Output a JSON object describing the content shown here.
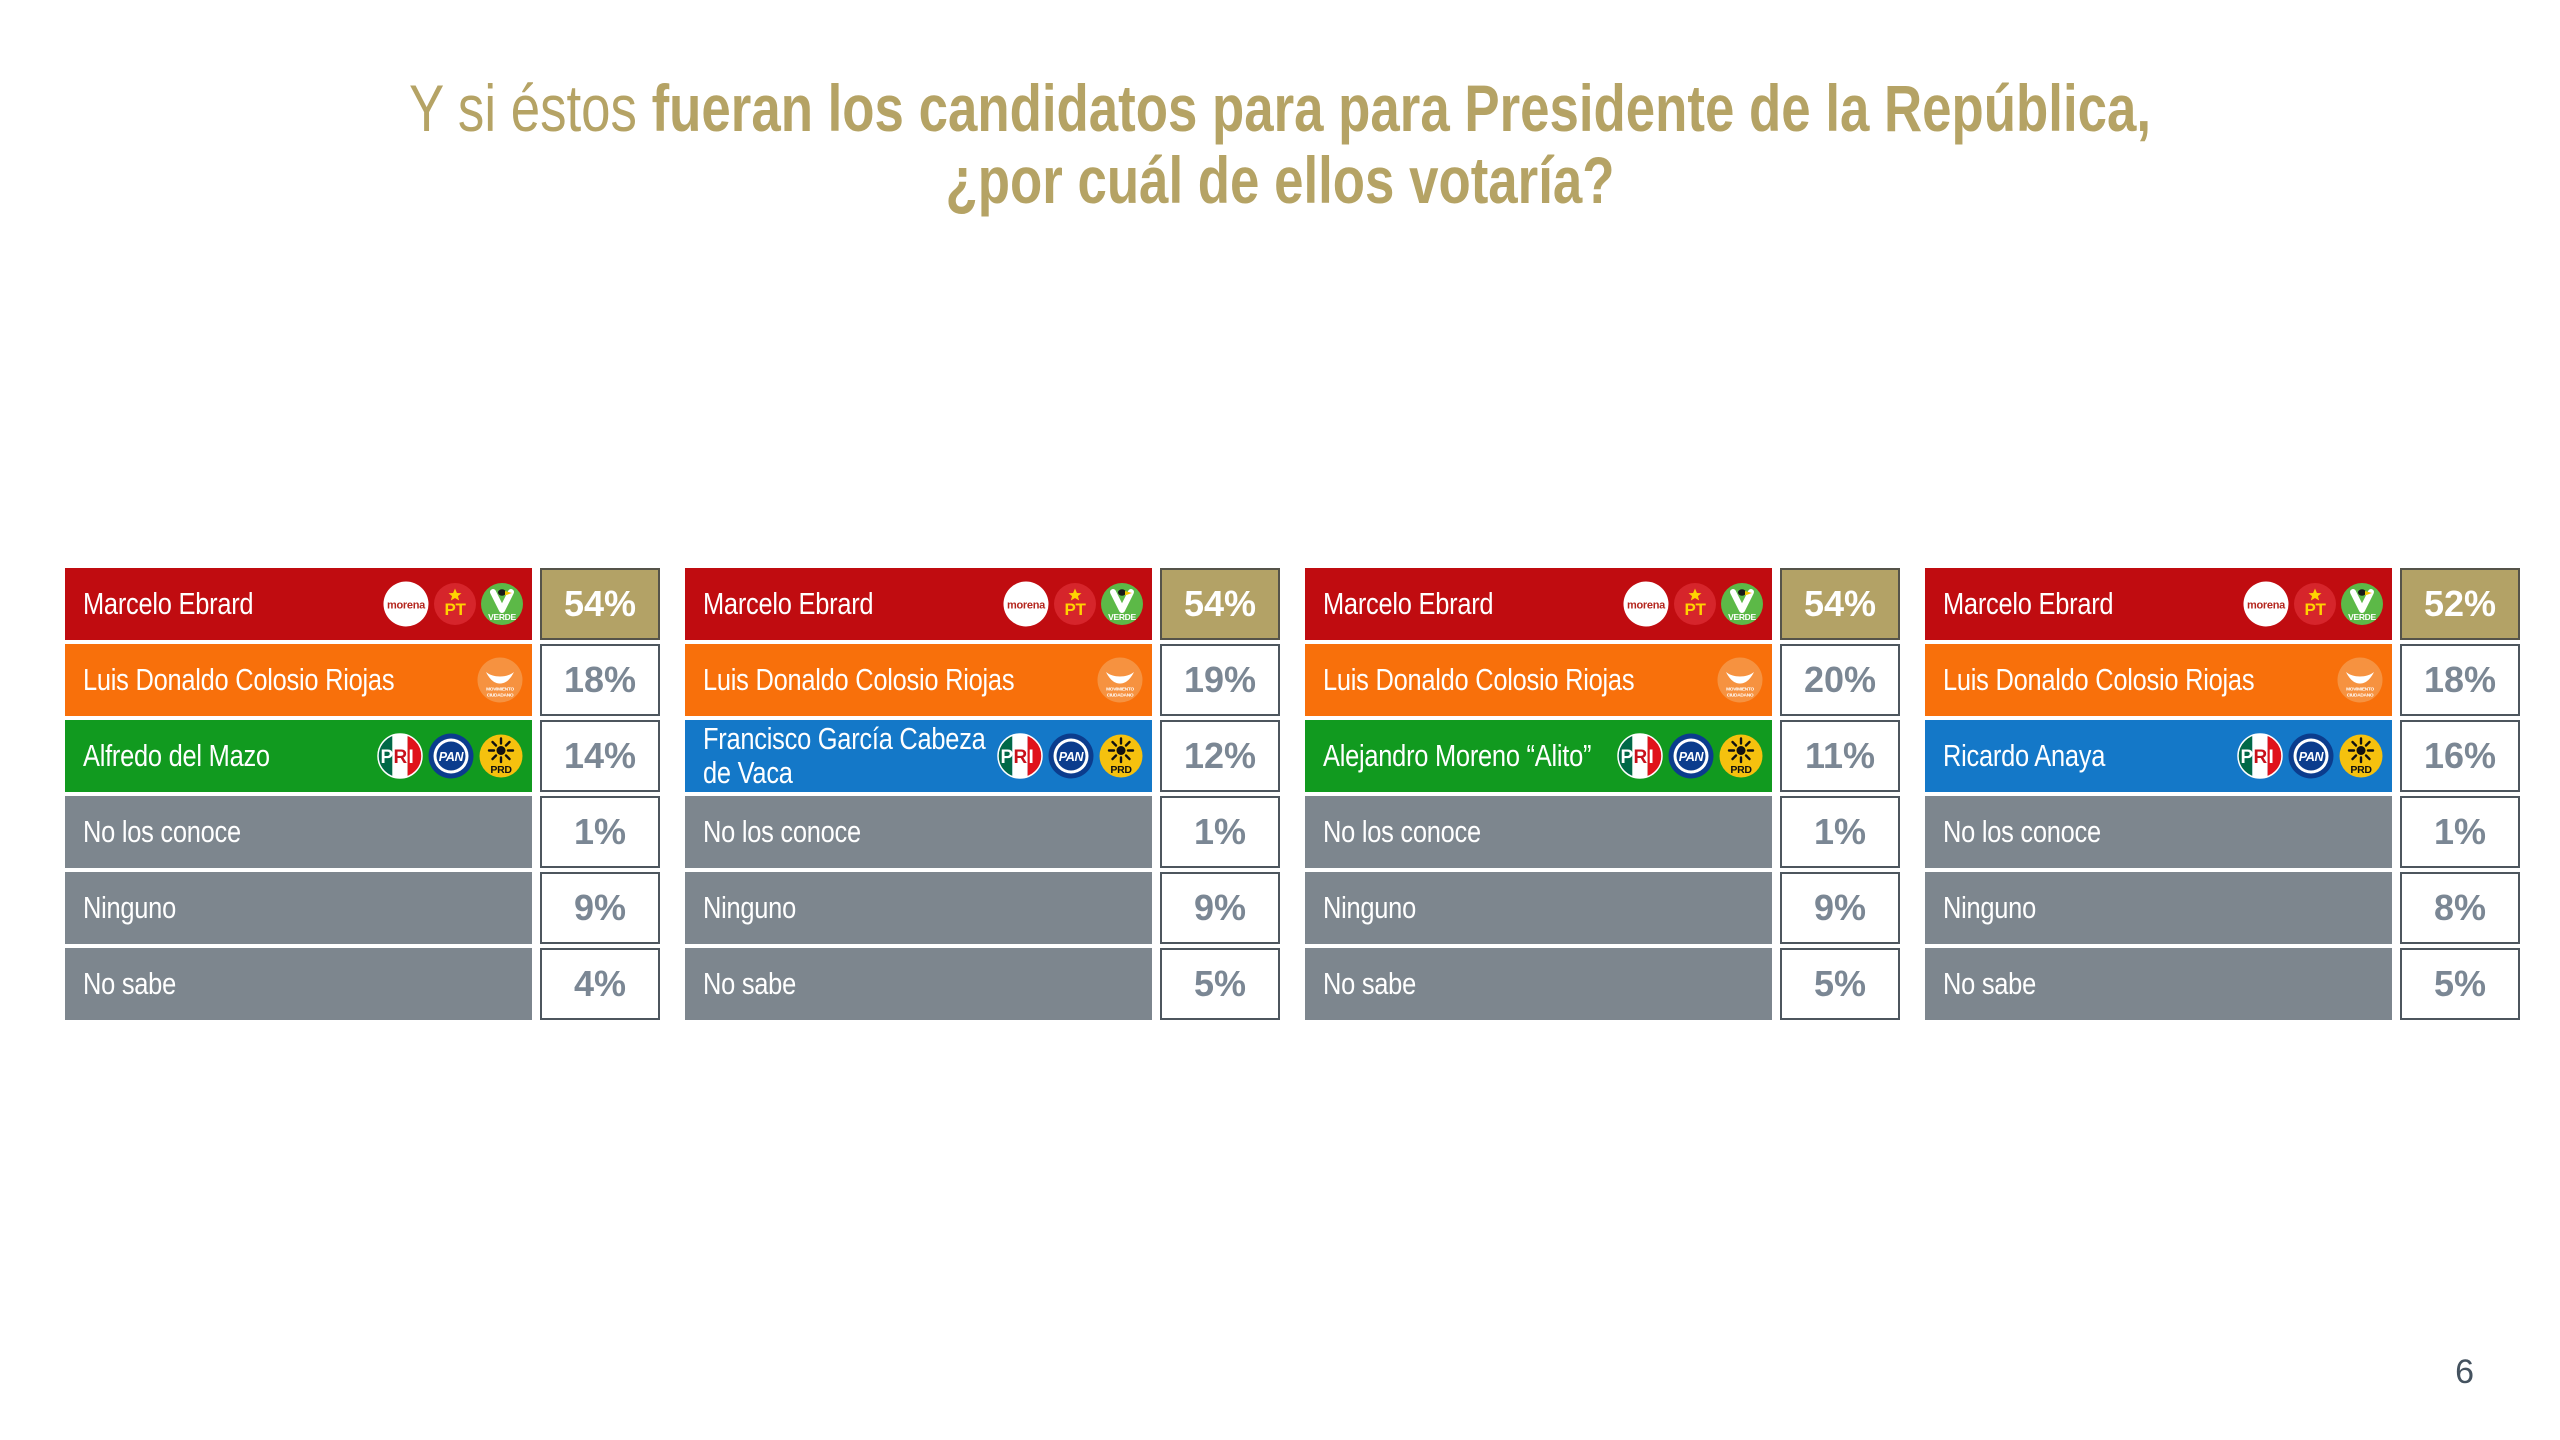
{
  "title": {
    "prefix": "Y si éstos ",
    "line1_bold": "fueran los candidatos para para Presidente de la República,",
    "line2": "¿por cuál de ellos votaría?"
  },
  "page_number": "6",
  "colors": {
    "title_gold": "#b5a365",
    "gold": "#b3a266",
    "red": "#c00c10",
    "orange": "#f8700b",
    "green": "#119a1f",
    "blue": "#1478c8",
    "gray": "#7d868e",
    "percent_text": "#7b8794",
    "page_number_text": "#44525f"
  },
  "party_logo_names": [
    "morena",
    "pt",
    "verde",
    "mc",
    "pri",
    "pan",
    "prd"
  ],
  "tables": [
    {
      "rows": [
        {
          "label": "Marcelo Ebrard",
          "value": "54%",
          "color": "red",
          "logos": [
            "morena",
            "pt",
            "verde"
          ],
          "highlight": true
        },
        {
          "label": "Luis Donaldo Colosio Riojas",
          "value": "18%",
          "color": "orange",
          "logos": [
            "mc"
          ]
        },
        {
          "label": "Alfredo del Mazo",
          "value": "14%",
          "color": "green",
          "logos": [
            "pri",
            "pan",
            "prd"
          ]
        },
        {
          "label": "No los conoce",
          "value": "1%",
          "color": "gray"
        },
        {
          "label": "Ninguno",
          "value": "9%",
          "color": "gray"
        },
        {
          "label": "No sabe",
          "value": "4%",
          "color": "gray"
        }
      ]
    },
    {
      "rows": [
        {
          "label": "Marcelo Ebrard",
          "value": "54%",
          "color": "red",
          "logos": [
            "morena",
            "pt",
            "verde"
          ],
          "highlight": true
        },
        {
          "label": "Luis Donaldo Colosio Riojas",
          "value": "19%",
          "color": "orange",
          "logos": [
            "mc"
          ]
        },
        {
          "label": "Francisco García Cabeza de Vaca",
          "value": "12%",
          "color": "blue",
          "logos": [
            "pri",
            "pan",
            "prd"
          ]
        },
        {
          "label": "No los conoce",
          "value": "1%",
          "color": "gray"
        },
        {
          "label": "Ninguno",
          "value": "9%",
          "color": "gray"
        },
        {
          "label": "No sabe",
          "value": "5%",
          "color": "gray"
        }
      ]
    },
    {
      "rows": [
        {
          "label": "Marcelo Ebrard",
          "value": "54%",
          "color": "red",
          "logos": [
            "morena",
            "pt",
            "verde"
          ],
          "highlight": true
        },
        {
          "label": "Luis Donaldo Colosio Riojas",
          "value": "20%",
          "color": "orange",
          "logos": [
            "mc"
          ]
        },
        {
          "label": "Alejandro Moreno “Alito”",
          "value": "11%",
          "color": "green",
          "logos": [
            "pri",
            "pan",
            "prd"
          ]
        },
        {
          "label": "No los conoce",
          "value": "1%",
          "color": "gray"
        },
        {
          "label": "Ninguno",
          "value": "9%",
          "color": "gray"
        },
        {
          "label": "No sabe",
          "value": "5%",
          "color": "gray"
        }
      ]
    },
    {
      "rows": [
        {
          "label": "Marcelo Ebrard",
          "value": "52%",
          "color": "red",
          "logos": [
            "morena",
            "pt",
            "verde"
          ],
          "highlight": true
        },
        {
          "label": "Luis Donaldo Colosio Riojas",
          "value": "18%",
          "color": "orange",
          "logos": [
            "mc"
          ]
        },
        {
          "label": "Ricardo Anaya",
          "value": "16%",
          "color": "blue",
          "logos": [
            "pri",
            "pan",
            "prd"
          ]
        },
        {
          "label": "No los conoce",
          "value": "1%",
          "color": "gray"
        },
        {
          "label": "Ninguno",
          "value": "8%",
          "color": "gray"
        },
        {
          "label": "No sabe",
          "value": "5%",
          "color": "gray"
        }
      ]
    }
  ],
  "chart_data": {
    "type": "table",
    "title": "Y si éstos fueran los candidatos para para Presidente de la República, ¿por cuál de ellos votaría?",
    "unit": "percent",
    "scenarios": [
      {
        "options": [
          "Marcelo Ebrard",
          "Luis Donaldo Colosio Riojas",
          "Alfredo del Mazo",
          "No los conoce",
          "Ninguno",
          "No sabe"
        ],
        "values": [
          54,
          18,
          14,
          1,
          9,
          4
        ],
        "party_logos": [
          [
            "morena",
            "pt",
            "verde"
          ],
          [
            "mc"
          ],
          [
            "pri",
            "pan",
            "prd"
          ],
          [],
          [],
          []
        ]
      },
      {
        "options": [
          "Marcelo Ebrard",
          "Luis Donaldo Colosio Riojas",
          "Francisco García Cabeza de Vaca",
          "No los conoce",
          "Ninguno",
          "No sabe"
        ],
        "values": [
          54,
          19,
          12,
          1,
          9,
          5
        ],
        "party_logos": [
          [
            "morena",
            "pt",
            "verde"
          ],
          [
            "mc"
          ],
          [
            "pri",
            "pan",
            "prd"
          ],
          [],
          [],
          []
        ]
      },
      {
        "options": [
          "Marcelo Ebrard",
          "Luis Donaldo Colosio Riojas",
          "Alejandro Moreno “Alito”",
          "No los conoce",
          "Ninguno",
          "No sabe"
        ],
        "values": [
          54,
          20,
          11,
          1,
          9,
          5
        ],
        "party_logos": [
          [
            "morena",
            "pt",
            "verde"
          ],
          [
            "mc"
          ],
          [
            "pri",
            "pan",
            "prd"
          ],
          [],
          [],
          []
        ]
      },
      {
        "options": [
          "Marcelo Ebrard",
          "Luis Donaldo Colosio Riojas",
          "Ricardo Anaya",
          "No los conoce",
          "Ninguno",
          "No sabe"
        ],
        "values": [
          52,
          18,
          16,
          1,
          8,
          5
        ],
        "party_logos": [
          [
            "morena",
            "pt",
            "verde"
          ],
          [
            "mc"
          ],
          [
            "pri",
            "pan",
            "prd"
          ],
          [],
          [],
          []
        ]
      }
    ]
  }
}
